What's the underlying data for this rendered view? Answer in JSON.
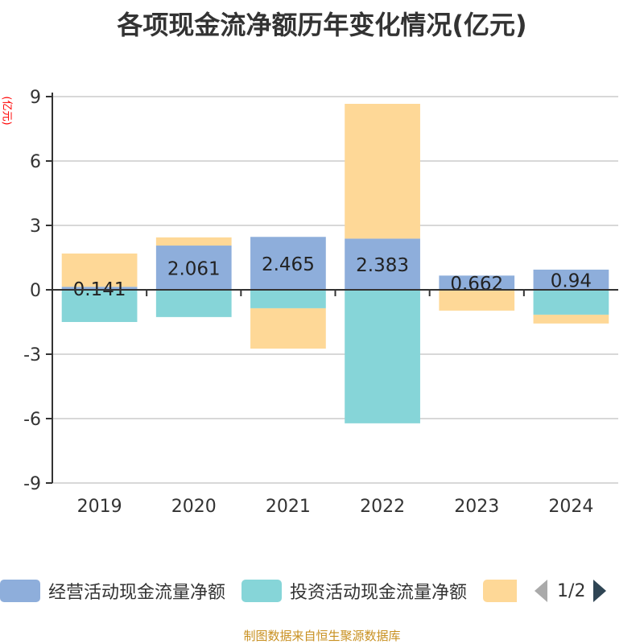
{
  "chart_data": {
    "type": "bar",
    "stacked": true,
    "title": "各项现金流净额历年变化情况(亿元)",
    "ylabel": "(亿元)",
    "categories": [
      "2019",
      "2020",
      "2021",
      "2022",
      "2023",
      "2024"
    ],
    "ylim": [
      -9,
      9
    ],
    "yticks": [
      9,
      6,
      3,
      0,
      -3,
      -6,
      -9
    ],
    "grid": true,
    "series": [
      {
        "name": "经营活动现金流量净额",
        "color": "#8eaedb",
        "values": [
          0.141,
          2.061,
          2.465,
          2.383,
          0.662,
          0.94
        ],
        "labels": [
          "0.141",
          "2.061",
          "2.465",
          "2.383",
          "0.662",
          "0.94"
        ]
      },
      {
        "name": "投资活动现金流量净额",
        "color": "#86d5d8",
        "values": [
          -1.5,
          -1.27,
          -0.86,
          -6.22,
          -0.02,
          -1.16
        ]
      },
      {
        "name": "",
        "color": "#fed897",
        "values": [
          1.55,
          0.38,
          -1.88,
          6.28,
          -0.95,
          -0.41
        ]
      }
    ],
    "legend": {
      "position": "bottom",
      "page": "1/2"
    }
  },
  "source": "制图数据来自恒生聚源数据库"
}
